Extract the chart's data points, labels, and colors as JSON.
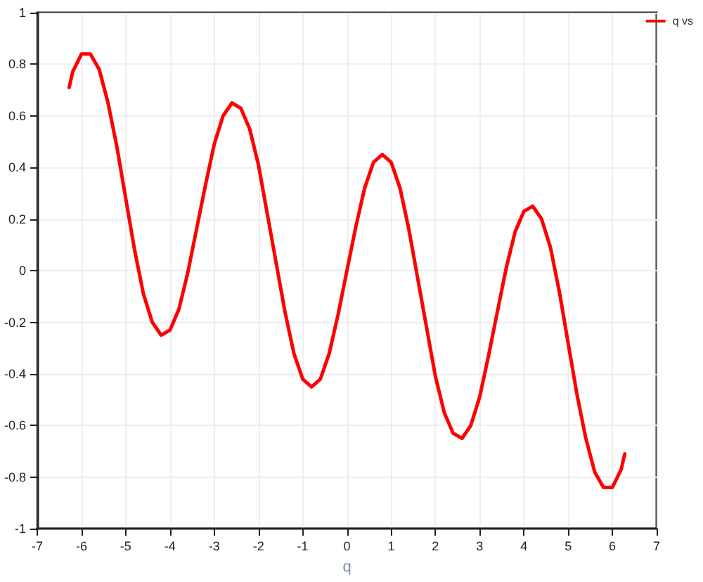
{
  "chart_data": {
    "type": "line",
    "xlabel": "q",
    "xlim": [
      -7,
      7
    ],
    "xticks": [
      -7,
      -6,
      -5,
      -4,
      -3,
      -2,
      -1,
      0,
      1,
      2,
      3,
      4,
      5,
      6,
      7
    ],
    "ylim": [
      -1,
      1
    ],
    "yticks": [
      -1,
      -0.8,
      -0.6,
      -0.4,
      -0.2,
      0,
      0.2,
      0.4,
      0.6,
      0.8,
      1
    ],
    "grid": true,
    "legend": "top right",
    "marker": "none",
    "line_style": "solid",
    "series": [
      {
        "name": "q vs",
        "color": "#ff0000",
        "x": [
          -6.28,
          -6.2,
          -6.0,
          -5.8,
          -5.6,
          -5.4,
          -5.2,
          -5.0,
          -4.8,
          -4.6,
          -4.4,
          -4.2,
          -4.0,
          -3.8,
          -3.6,
          -3.4,
          -3.2,
          -3.0,
          -2.8,
          -2.6,
          -2.4,
          -2.2,
          -2.0,
          -1.8,
          -1.6,
          -1.4,
          -1.2,
          -1.0,
          -0.8,
          -0.6,
          -0.4,
          -0.2,
          0,
          0.2,
          0.4,
          0.6,
          0.8,
          1.0,
          1.2,
          1.4,
          1.6,
          1.8,
          2.0,
          2.2,
          2.4,
          2.6,
          2.8,
          3.0,
          3.2,
          3.4,
          3.6,
          3.8,
          4.0,
          4.2,
          4.4,
          4.6,
          4.8,
          5.0,
          5.2,
          5.4,
          5.6,
          5.8,
          6.0,
          6.2,
          6.28
        ],
        "values": [
          0.71,
          0.77,
          0.84,
          0.84,
          0.78,
          0.65,
          0.48,
          0.28,
          0.08,
          -0.09,
          -0.2,
          -0.25,
          -0.23,
          -0.15,
          -0.01,
          0.16,
          0.33,
          0.49,
          0.6,
          0.65,
          0.63,
          0.55,
          0.41,
          0.22,
          0.03,
          -0.16,
          -0.32,
          -0.42,
          -0.45,
          -0.42,
          -0.32,
          -0.17,
          0,
          0.17,
          0.32,
          0.42,
          0.45,
          0.42,
          0.32,
          0.16,
          -0.03,
          -0.22,
          -0.41,
          -0.55,
          -0.63,
          -0.65,
          -0.6,
          -0.49,
          -0.33,
          -0.16,
          0.01,
          0.15,
          0.23,
          0.25,
          0.2,
          0.09,
          -0.08,
          -0.28,
          -0.48,
          -0.65,
          -0.78,
          -0.84,
          -0.84,
          -0.77,
          -0.71
        ]
      }
    ]
  }
}
